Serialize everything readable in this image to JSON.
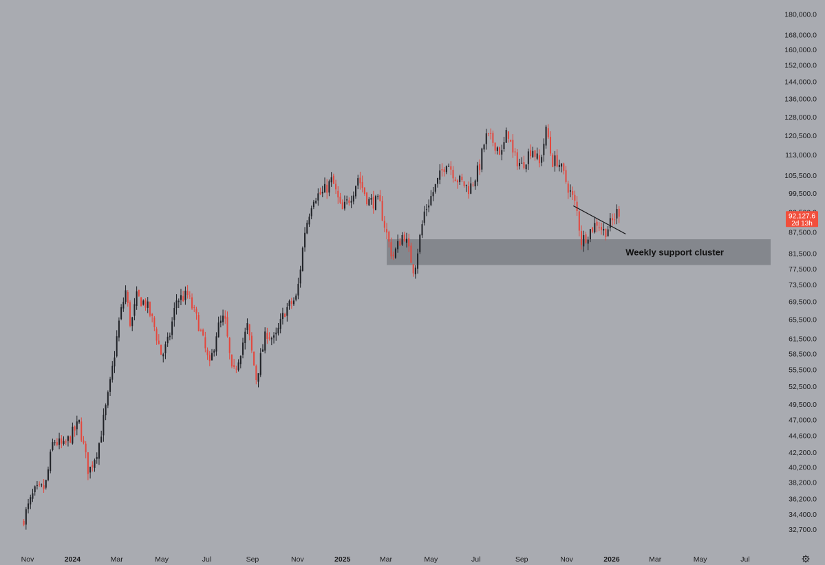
{
  "chart_data": {
    "type": "candlestick",
    "y_scale": "log",
    "ylim": [
      31500,
      182000
    ],
    "yticks": [
      "180,000.0",
      "168,000.0",
      "160,000.0",
      "152,000.0",
      "144,000.0",
      "136,000.0",
      "128,000.0",
      "120,500.0",
      "113,000.0",
      "105,500.0",
      "99,500.0",
      "93,500.0",
      "87,500.0",
      "81,500.0",
      "77,500.0",
      "73,500.0",
      "69,500.0",
      "65,500.0",
      "61,500.0",
      "58,500.0",
      "55,500.0",
      "52,500.0",
      "49,500.0",
      "47,000.0",
      "44,600.0",
      "42,200.0",
      "40,200.0",
      "38,200.0",
      "36,200.0",
      "34,400.0",
      "32,700.0"
    ],
    "xticks": [
      {
        "label": "Nov",
        "date": "2023-11-01",
        "bold": false
      },
      {
        "label": "2024",
        "date": "2024-01-01",
        "bold": true
      },
      {
        "label": "Mar",
        "date": "2024-03-01",
        "bold": false
      },
      {
        "label": "May",
        "date": "2024-05-01",
        "bold": false
      },
      {
        "label": "Jul",
        "date": "2024-07-01",
        "bold": false
      },
      {
        "label": "Sep",
        "date": "2024-09-01",
        "bold": false
      },
      {
        "label": "Nov",
        "date": "2024-11-01",
        "bold": false
      },
      {
        "label": "2025",
        "date": "2025-01-01",
        "bold": true
      },
      {
        "label": "Mar",
        "date": "2025-03-01",
        "bold": false
      },
      {
        "label": "May",
        "date": "2025-05-01",
        "bold": false
      },
      {
        "label": "Jul",
        "date": "2025-07-01",
        "bold": false
      },
      {
        "label": "Sep",
        "date": "2025-09-01",
        "bold": false
      },
      {
        "label": "Nov",
        "date": "2025-11-01",
        "bold": false
      },
      {
        "label": "2026",
        "date": "2026-01-01",
        "bold": true
      },
      {
        "label": "Mar",
        "date": "2026-03-01",
        "bold": false
      },
      {
        "label": "May",
        "date": "2026-05-01",
        "bold": false
      },
      {
        "label": "Jul",
        "date": "2026-07-01",
        "bold": false
      }
    ],
    "first_candle_date": "2023-10-27",
    "close_anchors": [
      [
        "2023-10-27",
        34000
      ],
      [
        "2023-11-10",
        37000
      ],
      [
        "2023-11-25",
        37600
      ],
      [
        "2023-12-06",
        44000
      ],
      [
        "2023-12-20",
        43000
      ],
      [
        "2024-01-10",
        46500
      ],
      [
        "2024-01-23",
        39500
      ],
      [
        "2024-02-05",
        43000
      ],
      [
        "2024-02-20",
        52000
      ],
      [
        "2024-03-05",
        66000
      ],
      [
        "2024-03-13",
        72000
      ],
      [
        "2024-03-20",
        64000
      ],
      [
        "2024-03-28",
        70500
      ],
      [
        "2024-04-10",
        69000
      ],
      [
        "2024-04-20",
        64500
      ],
      [
        "2024-05-01",
        58000
      ],
      [
        "2024-05-10",
        61000
      ],
      [
        "2024-05-21",
        70000
      ],
      [
        "2024-06-05",
        71000
      ],
      [
        "2024-06-20",
        64500
      ],
      [
        "2024-07-05",
        56000
      ],
      [
        "2024-07-15",
        63500
      ],
      [
        "2024-07-25",
        66000
      ],
      [
        "2024-08-05",
        54000
      ],
      [
        "2024-08-25",
        64000
      ],
      [
        "2024-09-06",
        54000
      ],
      [
        "2024-09-20",
        63000
      ],
      [
        "2024-10-01",
        61000
      ],
      [
        "2024-10-15",
        67500
      ],
      [
        "2024-10-31",
        70500
      ],
      [
        "2024-11-11",
        88000
      ],
      [
        "2024-11-22",
        98500
      ],
      [
        "2024-12-05",
        99500
      ],
      [
        "2024-12-18",
        104000
      ],
      [
        "2024-12-31",
        93500
      ],
      [
        "2025-01-15",
        100000
      ],
      [
        "2025-01-22",
        105000
      ],
      [
        "2025-02-05",
        97000
      ],
      [
        "2025-02-20",
        96500
      ],
      [
        "2025-03-03",
        86000
      ],
      [
        "2025-03-10",
        80500
      ],
      [
        "2025-03-25",
        87500
      ],
      [
        "2025-04-08",
        77000
      ],
      [
        "2025-04-22",
        93500
      ],
      [
        "2025-05-10",
        103500
      ],
      [
        "2025-05-22",
        111000
      ],
      [
        "2025-06-05",
        104500
      ],
      [
        "2025-06-22",
        101000
      ],
      [
        "2025-07-05",
        108000
      ],
      [
        "2025-07-14",
        120000
      ],
      [
        "2025-07-25",
        118000
      ],
      [
        "2025-08-05",
        113500
      ],
      [
        "2025-08-13",
        123000
      ],
      [
        "2025-08-20",
        113000
      ],
      [
        "2025-09-01",
        109000
      ],
      [
        "2025-09-15",
        116000
      ],
      [
        "2025-09-25",
        109500
      ],
      [
        "2025-10-05",
        123500
      ],
      [
        "2025-10-12",
        110500
      ],
      [
        "2025-10-20",
        111000
      ],
      [
        "2025-11-04",
        101000
      ],
      [
        "2025-11-14",
        95000
      ],
      [
        "2025-11-21",
        85000
      ],
      [
        "2025-12-01",
        87500
      ],
      [
        "2025-12-12",
        90500
      ],
      [
        "2025-12-22",
        87500
      ],
      [
        "2026-01-03",
        91000
      ],
      [
        "2026-01-08",
        93500
      ],
      [
        "2026-01-12",
        92127.6
      ]
    ],
    "support_zone": {
      "low": 78500,
      "high": 85500,
      "start_date": "2025-03-02",
      "label": "Weekly support cluster"
    },
    "trendline": {
      "start": [
        "2025-11-10",
        95500
      ],
      "end": [
        "2026-01-20",
        87000
      ]
    },
    "last_price": {
      "value": "92,127.6",
      "countdown": "2d 13h",
      "color": "#f14f3c"
    },
    "colors": {
      "up": "#1f2126",
      "down": "#e4463c",
      "background": "#a9abb1",
      "zone": "#7e8087"
    }
  },
  "settings_icon": "gear-icon"
}
